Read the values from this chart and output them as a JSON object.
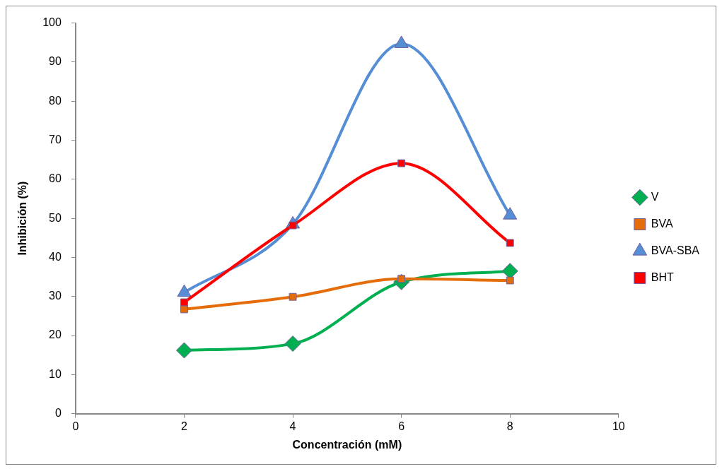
{
  "chart_data": {
    "type": "line",
    "xlabel": "Concentración (mM)",
    "ylabel": "Inhibición (%)",
    "xlim": [
      0,
      10
    ],
    "xticks": [
      0,
      2,
      4,
      6,
      8,
      10
    ],
    "ylim": [
      0,
      100
    ],
    "yticks": [
      0,
      10,
      20,
      30,
      40,
      50,
      60,
      70,
      80,
      90,
      100
    ],
    "x": [
      2,
      4,
      6,
      8
    ],
    "grid": false,
    "legend": "right",
    "series": [
      {
        "name": "V",
        "color": "#00b050",
        "marker": "diamond",
        "values": [
          16.2,
          17.9,
          33.7,
          36.5
        ]
      },
      {
        "name": "BVA",
        "color": "#e46c0a",
        "marker": "square",
        "values": [
          26.7,
          29.9,
          34.5,
          34.1
        ]
      },
      {
        "name": "BVA-SBA",
        "color": "#558ed5",
        "marker": "triangle",
        "values": [
          31,
          48.5,
          94.7,
          50.8
        ]
      },
      {
        "name": "BHT",
        "color": "#ff0000",
        "marker": "square",
        "values": [
          28.5,
          48.2,
          64.1,
          43.7
        ]
      }
    ]
  }
}
